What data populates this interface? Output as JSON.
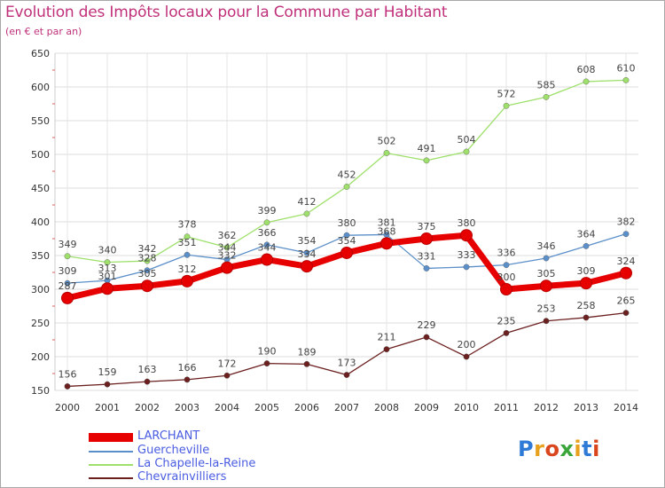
{
  "header": {
    "title": "Evolution des Impôts locaux pour la Commune par Habitant",
    "subtitle": "(en € et par an)"
  },
  "logo": {
    "text": "Proxiti",
    "colors": [
      "#2f7ad6",
      "#e8a11c",
      "#d9461d",
      "#3aa63a",
      "#e8a11c",
      "#2f7ad6",
      "#d9461d"
    ]
  },
  "chart_data": {
    "type": "line",
    "title": "Evolution des Impôts locaux pour la Commune par Habitant",
    "subtitle": "(en € et par an)",
    "xlabel": "",
    "ylabel": "",
    "ylim": [
      150,
      650
    ],
    "yticks": [
      150,
      200,
      250,
      300,
      350,
      400,
      450,
      500,
      550,
      600,
      650
    ],
    "grid": true,
    "legend": "bottom-left",
    "x": [
      "2000",
      "2001",
      "2002",
      "2003",
      "2004",
      "2005",
      "2006",
      "2007",
      "2008",
      "2009",
      "2010",
      "2011",
      "2012",
      "2013",
      "2014"
    ],
    "series": [
      {
        "name": "LARCHANT",
        "color": "#e60000",
        "values": [
          287,
          301,
          305,
          312,
          332,
          344,
          334,
          354,
          368,
          375,
          380,
          300,
          305,
          309,
          324
        ]
      },
      {
        "name": "Guercheville",
        "color": "#5b8fc9",
        "values": [
          309,
          313,
          328,
          351,
          344,
          366,
          354,
          380,
          381,
          331,
          333,
          336,
          346,
          364,
          382
        ]
      },
      {
        "name": "La Chapelle-la-Reine",
        "color": "#9ee06b",
        "values": [
          349,
          340,
          342,
          378,
          362,
          399,
          412,
          452,
          502,
          491,
          504,
          572,
          585,
          608,
          610
        ]
      },
      {
        "name": "Chevrainvilliers",
        "color": "#6b1f1f",
        "values": [
          156,
          159,
          163,
          166,
          172,
          190,
          189,
          173,
          211,
          229,
          200,
          235,
          253,
          258,
          265
        ]
      }
    ]
  }
}
